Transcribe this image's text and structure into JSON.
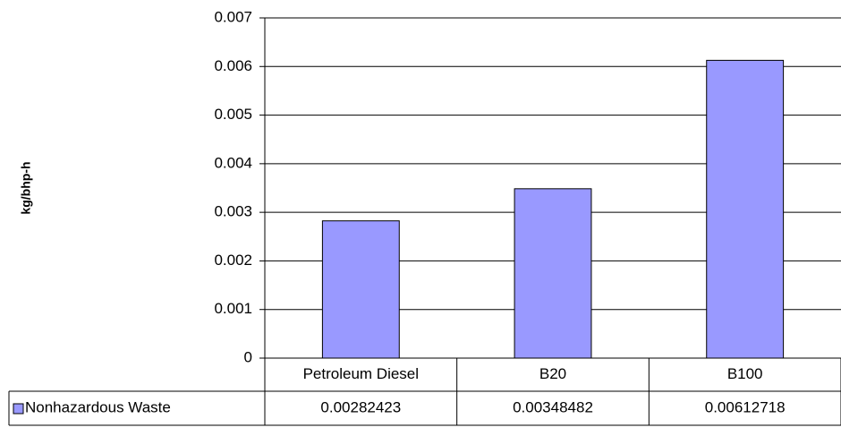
{
  "chart_data": {
    "type": "bar",
    "y_label": "kg/bhp-h",
    "categories": [
      "Petroleum Diesel",
      "B20",
      "B100"
    ],
    "series": [
      {
        "name": "Nonhazardous Waste",
        "color": "#9999ff",
        "values": [
          0.00282423,
          0.00348482,
          0.00612718
        ]
      }
    ],
    "ylim": [
      0,
      0.007
    ],
    "yticks": [
      0,
      0.001,
      0.002,
      0.003,
      0.004,
      0.005,
      0.006,
      0.007
    ],
    "grid": true,
    "data_table": true
  }
}
